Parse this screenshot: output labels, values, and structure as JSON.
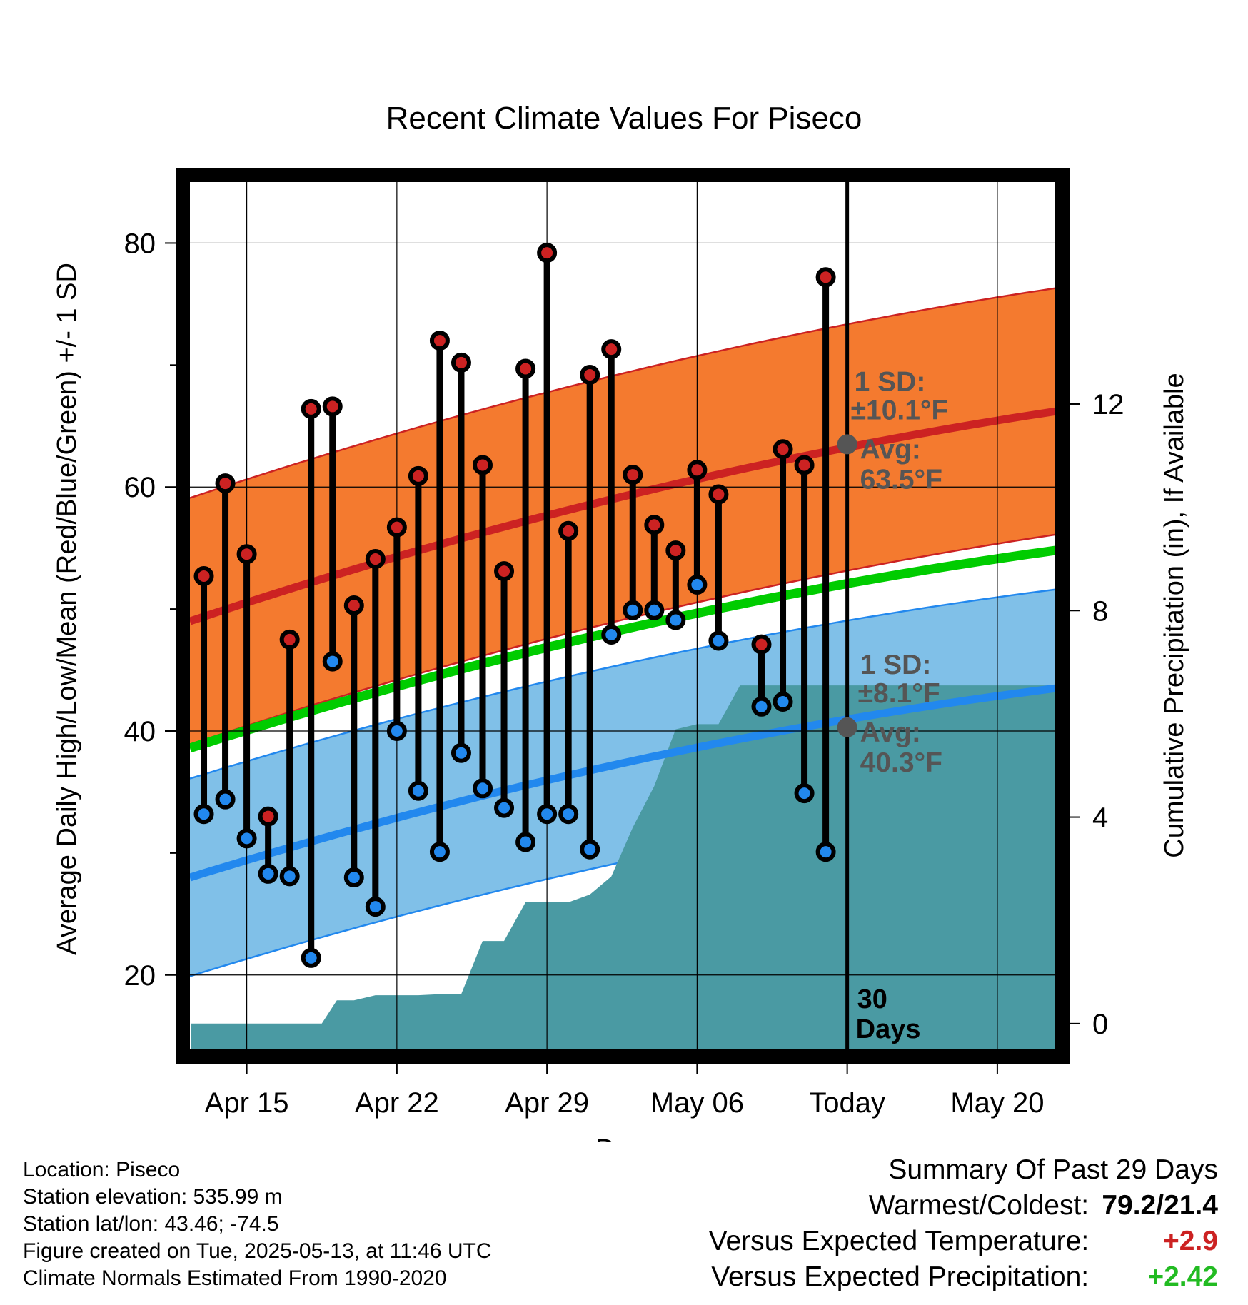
{
  "chart_data": {
    "type": "line",
    "title": "Recent Climate Values For Piseco",
    "xlabel": "Day",
    "ylabel": "Average Daily High/Low/Mean (Red/Blue/Green) +/- 1 SD",
    "y2label": "Cumulative Precipitation (in), If Available",
    "xticks": [
      {
        "label": "Apr 15",
        "day": 3
      },
      {
        "label": "Apr 22",
        "day": 10
      },
      {
        "label": "Apr 29",
        "day": 17
      },
      {
        "label": "May 06",
        "day": 24
      },
      {
        "label": "Today",
        "day": 31
      },
      {
        "label": "May 20",
        "day": 38
      }
    ],
    "today_day": 31,
    "xlim": [
      0.35,
      40.7
    ],
    "ylim": [
      13.9,
      85
    ],
    "yticks": [
      20,
      40,
      60,
      80
    ],
    "y2lim": [
      -0.5,
      16.3
    ],
    "y2ticks": [
      0,
      4,
      8,
      12
    ],
    "grid": true,
    "normals": {
      "high_mean": [
        49.0,
        66.2
      ],
      "high_sd": 10.1,
      "low_mean": [
        28.0,
        43.5
      ],
      "low_sd": 8.1,
      "mean": [
        38.6,
        54.8
      ]
    },
    "series": [
      {
        "name": "High",
        "color": "#cc2222",
        "days": [
          1,
          2,
          3,
          4,
          5,
          6,
          7,
          8,
          9,
          10,
          11,
          12,
          13,
          14,
          15,
          16,
          17,
          18,
          19,
          20,
          21,
          22,
          23,
          24,
          25,
          26,
          27,
          28,
          29,
          30
        ],
        "values": [
          52.7,
          60.3,
          54.5,
          33.0,
          47.5,
          66.4,
          66.6,
          50.3,
          54.1,
          56.7,
          60.9,
          72.0,
          70.2,
          61.8,
          53.1,
          69.7,
          79.2,
          56.4,
          69.2,
          71.3,
          61.0,
          56.9,
          54.8,
          61.4,
          59.4,
          null,
          47.1,
          63.1,
          61.8,
          77.2
        ]
      },
      {
        "name": "Low",
        "color": "#2288ee",
        "days": [
          1,
          2,
          3,
          4,
          5,
          6,
          7,
          8,
          9,
          10,
          11,
          12,
          13,
          14,
          15,
          16,
          17,
          18,
          19,
          20,
          21,
          22,
          23,
          24,
          25,
          26,
          27,
          28,
          29,
          30
        ],
        "values": [
          33.2,
          34.4,
          31.2,
          28.3,
          28.1,
          21.4,
          45.7,
          28.0,
          25.6,
          40.0,
          35.1,
          30.1,
          38.2,
          35.3,
          33.7,
          30.9,
          33.2,
          33.2,
          30.3,
          47.9,
          49.9,
          49.9,
          49.1,
          52.0,
          47.4,
          null,
          42.0,
          42.4,
          34.9,
          30.1
        ]
      }
    ],
    "precip": {
      "days": [
        0.4,
        6.5,
        7.2,
        8,
        9,
        10,
        11,
        12,
        13,
        14,
        15,
        16,
        17,
        18,
        19,
        20,
        21,
        22,
        23,
        24,
        25,
        26,
        27,
        28,
        29,
        30,
        31,
        40.7
      ],
      "values": [
        0,
        0,
        0.45,
        0.45,
        0.55,
        0.55,
        0.55,
        0.57,
        0.57,
        1.6,
        1.6,
        2.35,
        2.35,
        2.35,
        2.5,
        2.85,
        3.8,
        4.6,
        5.7,
        5.8,
        5.8,
        6.55,
        6.55,
        6.55,
        6.55,
        6.55,
        6.55,
        6.55
      ]
    },
    "annotations": {
      "high_sd_label": "1 SD:",
      "high_sd_value": "±10.1°F",
      "high_avg_label": "Avg:",
      "high_avg_value": "63.5°F",
      "high_avg": 63.5,
      "low_sd_label": "1 SD:",
      "low_sd_value": "±8.1°F",
      "low_avg_label": "Avg:",
      "low_avg_value": "40.3°F",
      "low_avg": 40.3,
      "days_label_1": "30",
      "days_label_2": "Days"
    },
    "colors": {
      "high_band": "#f47a2f",
      "high_line": "#cc2222",
      "low_band": "#80c0e8",
      "low_line": "#2288ee",
      "mean_line": "#00cc00",
      "precip_fill": "#4a9aa3",
      "today_marker": "#555555"
    }
  },
  "info": {
    "location": "Location: Piseco",
    "elevation": "Station elevation: 535.99 m",
    "latlon": "Station lat/lon: 43.46; -74.5",
    "created": "Figure created on Tue, 2025-05-13, at 11:46 UTC",
    "normals": "Climate Normals Estimated From 1990-2020"
  },
  "summary": {
    "heading": "Summary Of Past 29 Days",
    "warmest_label": "Warmest/Coldest:",
    "warmest_value": "79.2/21.4",
    "temp_label": "Versus Expected Temperature:",
    "temp_value": "+2.9",
    "precip_label": "Versus Expected Precipitation:",
    "precip_value": "+2.42"
  }
}
